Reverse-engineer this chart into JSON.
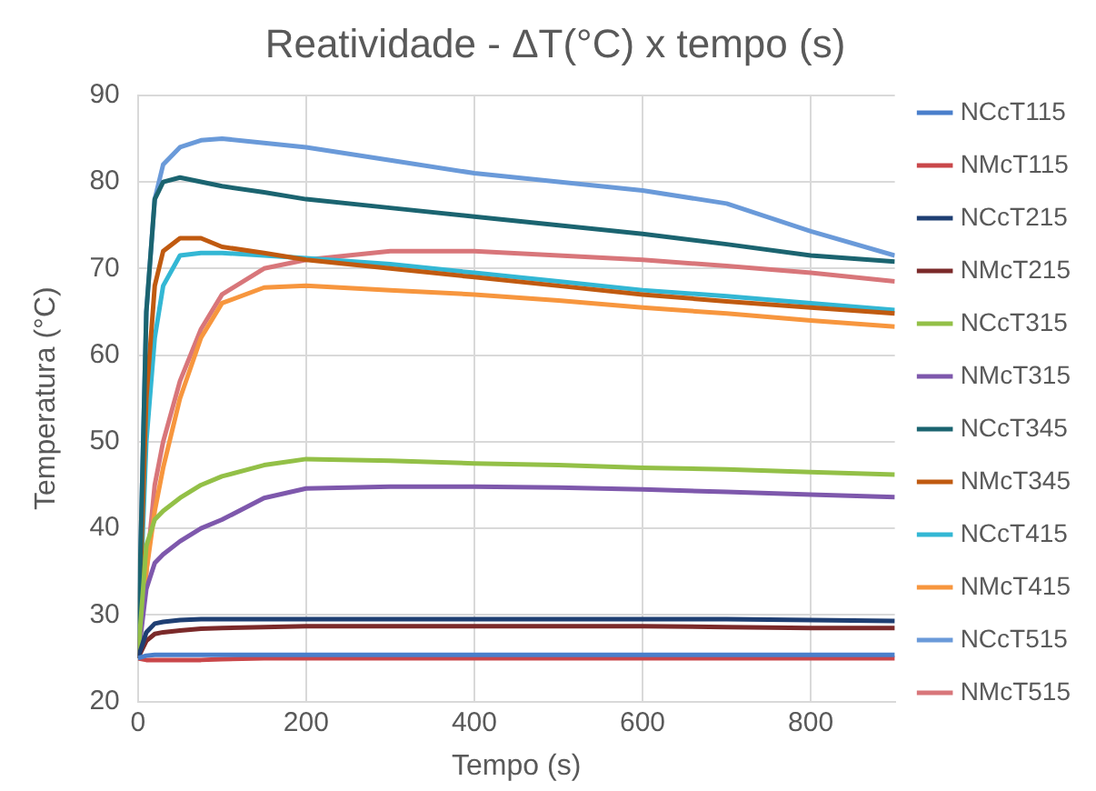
{
  "chart_data": {
    "type": "line",
    "title": "Reatividade - ΔT(°C) x tempo (s)",
    "xlabel": "Tempo (s)",
    "ylabel": "Temperatura (°C)",
    "x": [
      0,
      10,
      20,
      30,
      50,
      75,
      100,
      150,
      200,
      300,
      400,
      500,
      600,
      700,
      800,
      900
    ],
    "xlim": [
      0,
      900
    ],
    "xticks": [
      0,
      200,
      400,
      600,
      800
    ],
    "ylim": [
      20,
      90
    ],
    "yticks": [
      20,
      30,
      40,
      50,
      60,
      70,
      80,
      90
    ],
    "grid": true,
    "legend": "right",
    "marker": "none",
    "line_style": "solid",
    "series": [
      {
        "name": "NCcT115",
        "color": "#4a7fcb",
        "values": [
          25,
          25.3,
          25.4,
          25.4,
          25.4,
          25.4,
          25.4,
          25.4,
          25.4,
          25.4,
          25.4,
          25.4,
          25.4,
          25.4,
          25.4,
          25.4
        ]
      },
      {
        "name": "NMcT115",
        "color": "#c9474a",
        "values": [
          25,
          24.8,
          24.8,
          24.8,
          24.8,
          24.8,
          24.9,
          25,
          25,
          25,
          25,
          25,
          25,
          25,
          25,
          25
        ]
      },
      {
        "name": "NCcT215",
        "color": "#1f3f73",
        "values": [
          25,
          28,
          29,
          29.2,
          29.4,
          29.5,
          29.5,
          29.5,
          29.5,
          29.5,
          29.5,
          29.5,
          29.5,
          29.5,
          29.4,
          29.3
        ]
      },
      {
        "name": "NMcT215",
        "color": "#7b2a2a",
        "values": [
          25,
          27,
          27.8,
          28,
          28.2,
          28.4,
          28.5,
          28.6,
          28.7,
          28.7,
          28.7,
          28.7,
          28.7,
          28.6,
          28.5,
          28.5
        ]
      },
      {
        "name": "NCcT315",
        "color": "#93c047",
        "values": [
          25,
          38,
          41,
          42,
          43.5,
          45,
          46,
          47.3,
          48,
          47.8,
          47.5,
          47.3,
          47,
          46.8,
          46.5,
          46.2
        ]
      },
      {
        "name": "NMcT315",
        "color": "#7e58ac",
        "values": [
          25,
          33,
          36,
          37,
          38.5,
          40,
          41,
          43.5,
          44.6,
          44.8,
          44.8,
          44.7,
          44.5,
          44.2,
          43.9,
          43.6
        ]
      },
      {
        "name": "NCcT345",
        "color": "#1b6470",
        "values": [
          25,
          65,
          78,
          80,
          80.5,
          80,
          79.5,
          78.8,
          78,
          77,
          76,
          75,
          74,
          72.8,
          71.5,
          70.8
        ]
      },
      {
        "name": "NMcT345",
        "color": "#c05a10",
        "values": [
          25,
          55,
          68,
          72,
          73.5,
          73.5,
          72.5,
          71.8,
          71,
          70,
          69,
          68,
          67,
          66.2,
          65.5,
          64.8
        ]
      },
      {
        "name": "NCcT415",
        "color": "#33b7d4",
        "values": [
          25,
          50,
          62,
          68,
          71.5,
          71.8,
          71.8,
          71.5,
          71.2,
          70.5,
          69.5,
          68.5,
          67.5,
          66.8,
          66,
          65.2
        ]
      },
      {
        "name": "NMcT415",
        "color": "#f7963e",
        "values": [
          25,
          35,
          42,
          47,
          55,
          62,
          66,
          67.8,
          68,
          67.5,
          67,
          66.3,
          65.5,
          64.8,
          64,
          63.3
        ]
      },
      {
        "name": "NCcT515",
        "color": "#6a9ad9",
        "values": [
          25,
          65,
          78,
          82,
          84,
          84.8,
          85,
          84.5,
          84,
          82.5,
          81,
          80,
          79,
          77.5,
          74.3,
          71.5
        ]
      },
      {
        "name": "NMcT515",
        "color": "#d8767a",
        "values": [
          25,
          35,
          45,
          50,
          57,
          63,
          67,
          70,
          71,
          72,
          72,
          71.5,
          71,
          70.3,
          69.5,
          68.5
        ]
      }
    ]
  }
}
